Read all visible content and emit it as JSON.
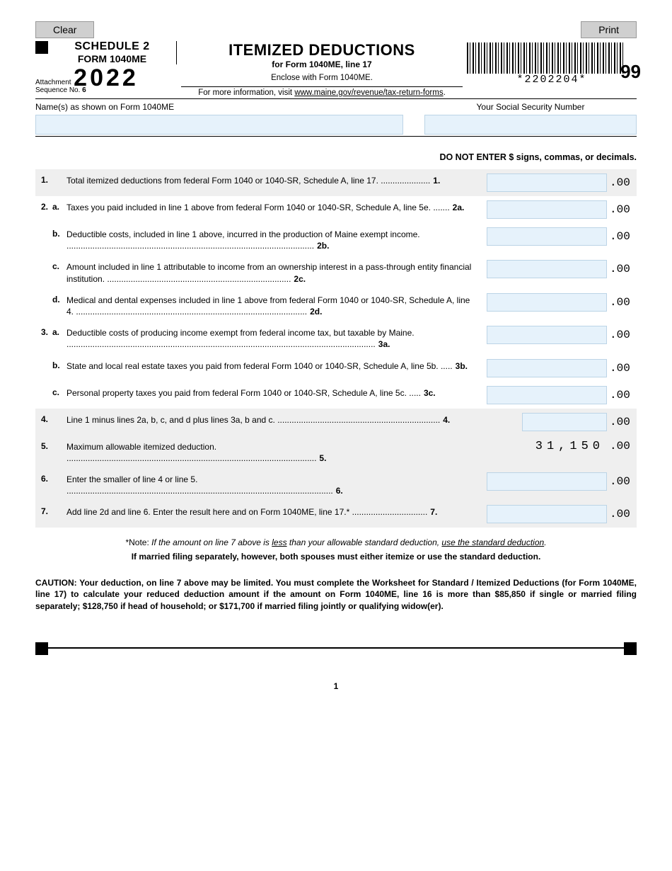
{
  "buttons": {
    "clear": "Clear",
    "print": "Print"
  },
  "header": {
    "schedule": "SCHEDULE 2",
    "form": "FORM 1040ME",
    "year": "2022",
    "attachment_label": "Attachment",
    "sequence_label": "Sequence No.",
    "sequence_no": "6",
    "title": "ITEMIZED DEDUCTIONS",
    "subtitle": "for Form 1040ME, line 17",
    "enclose": "Enclose with Form 1040ME.",
    "moreinfo_prefix": "For more information, visit ",
    "moreinfo_link": "www.maine.gov/revenue/tax-return-forms",
    "moreinfo_suffix": ".",
    "barcode_text": "*2202204*",
    "corner_number": "99"
  },
  "identity": {
    "name_label": "Name(s) as shown on Form 1040ME",
    "ssn_label": "Your Social Security Number",
    "name_value": "",
    "ssn_value": ""
  },
  "instruction": "DO NOT ENTER $ signs, commas, or decimals.",
  "cents": ".00",
  "lines": {
    "l1": {
      "num": "1.",
      "text": "Total itemized deductions from federal Form 1040 or 1040-SR, Schedule A, line 17.",
      "end": "1."
    },
    "l2a": {
      "num": "2.",
      "sub": "a.",
      "text": "Taxes you paid included in line 1 above from federal Form 1040 or 1040-SR, Schedule A, line 5e.",
      "end": "2a."
    },
    "l2b": {
      "sub": "b.",
      "text": "Deductible costs, included in line 1 above, incurred in the production of Maine exempt income.",
      "end": "2b."
    },
    "l2c": {
      "sub": "c.",
      "text": "Amount included in line 1 attributable to income from an ownership interest in a pass-through entity financial institution.",
      "end": "2c."
    },
    "l2d": {
      "sub": "d.",
      "text": "Medical and dental expenses included in line 1 above from federal Form 1040 or 1040-SR, Schedule A, line 4.",
      "end": "2d."
    },
    "l3a": {
      "num": "3.",
      "sub": "a.",
      "text": "Deductible costs of producing income exempt from federal income tax, but taxable by Maine.",
      "end": "3a."
    },
    "l3b": {
      "sub": "b.",
      "text": "State and local real estate taxes you paid from federal Form 1040 or 1040-SR, Schedule A, line 5b.",
      "end": "3b."
    },
    "l3c": {
      "sub": "c.",
      "text": "Personal property taxes you paid from federal Form 1040 or 1040-SR, Schedule A, line 5c.",
      "end": "3c."
    },
    "l4": {
      "num": "4.",
      "text": "Line 1 minus lines 2a, b, c, and d plus lines 3a, b and c.",
      "end": "4."
    },
    "l5": {
      "num": "5.",
      "text": "Maximum allowable itemized deduction.",
      "end": "5.",
      "value": "31,150"
    },
    "l6": {
      "num": "6.",
      "text": "Enter the smaller of line 4 or line 5.",
      "end": "6."
    },
    "l7": {
      "num": "7.",
      "text": "Add line 2d and line 6. Enter the result here and on Form 1040ME, line 17.*",
      "end": "7."
    }
  },
  "note": {
    "prefix": "*Note: ",
    "italic1": "If the amount on line 7 above is ",
    "u1": "less",
    "italic2": " than your allowable standard deduction, ",
    "u2": "use the standard deduction",
    "italic3": "."
  },
  "note2": "If married filing separately, however, both spouses must either itemize or use the standard deduction.",
  "caution": "CAUTION: Your deduction, on line 7 above may be limited. You must complete the Worksheet for Standard / Itemized Deductions (for Form 1040ME, line 17) to calculate your reduced deduction amount if the amount on Form 1040ME, line 16 is more than $85,850 if single or married filing separately; $128,750 if head of household; or $171,700 if married filing jointly or qualifying widow(er).",
  "page_number": "1"
}
